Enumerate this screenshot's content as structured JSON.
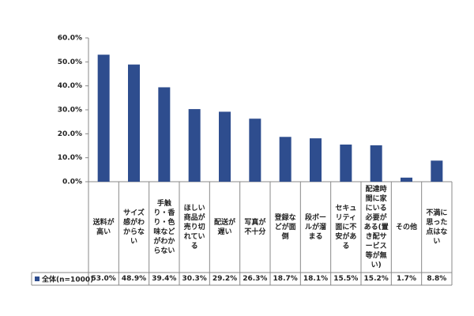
{
  "chart_data": {
    "type": "bar",
    "categories": [
      "送料が高い",
      "サイズ感がわからない",
      "手触り・香り・色味などがわからない",
      "ほしい商品が売り切れている",
      "配送が遅い",
      "写真が不十分",
      "登録などが面倒",
      "段ボールが溜まる",
      "セキュリティ面に不安がある",
      "配達時間に家にいる必要がある(置き配サービス等が無い)",
      "その他",
      "不満に思った点はない"
    ],
    "series": [
      {
        "name": "全体(n=1000)",
        "color": "#2e4d8e",
        "values": [
          53.0,
          48.9,
          39.4,
          30.3,
          29.2,
          26.3,
          18.7,
          18.1,
          15.5,
          15.2,
          1.7,
          8.8
        ],
        "value_labels": [
          "53.0%",
          "48.9%",
          "39.4%",
          "30.3%",
          "29.2%",
          "26.3%",
          "18.7%",
          "18.1%",
          "15.5%",
          "15.2%",
          "1.7%",
          "8.8%"
        ]
      }
    ],
    "ylim": [
      0,
      60
    ],
    "yticks": [
      {
        "value": 0,
        "label": "0.0%"
      },
      {
        "value": 10,
        "label": "10.0%"
      },
      {
        "value": 20,
        "label": "20.0%"
      },
      {
        "value": 30,
        "label": "30.0%"
      },
      {
        "value": 40,
        "label": "40.0%"
      },
      {
        "value": 50,
        "label": "50.0%"
      },
      {
        "value": 60,
        "label": "60.0%"
      }
    ],
    "grid": false
  }
}
